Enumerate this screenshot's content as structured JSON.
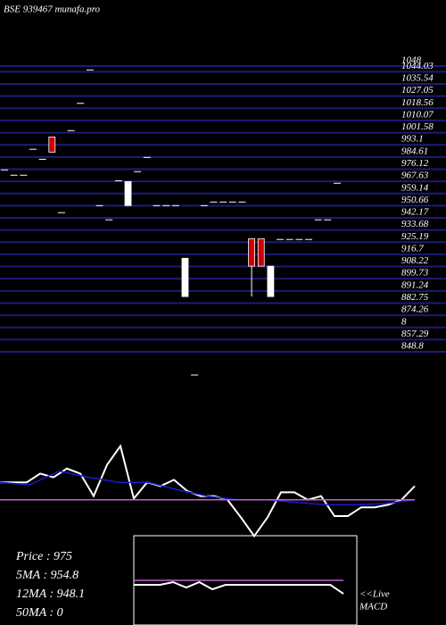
{
  "chart_data": [
    {
      "type": "candlestick",
      "title": "BSE 939467 munafa.pro",
      "categories": [
        null,
        null,
        null,
        null,
        null,
        null,
        null,
        null,
        null,
        null,
        null,
        null,
        null,
        null,
        null,
        null,
        null,
        null,
        null,
        null,
        null,
        null,
        null,
        null,
        null,
        null,
        null,
        null,
        null,
        null,
        null,
        null,
        null,
        null,
        null,
        null
      ],
      "open": [
        975.6,
        971.9,
        971.9,
        990,
        983,
        998.6,
        945.8,
        1003,
        1022,
        1045.3,
        950.7,
        940.8,
        968,
        950.7,
        974.4,
        984.3,
        950.7,
        950.7,
        950.7,
        887.3,
        832.6,
        950.7,
        953.2,
        953.2,
        953.2,
        953.2,
        927.7,
        927.7,
        887.3,
        927.1,
        927.1,
        927.1,
        927.1,
        940.8,
        940.8,
        966.3
      ],
      "high": [
        975.6,
        971.9,
        971.9,
        990,
        983,
        998.6,
        945.8,
        1003,
        1022,
        1045.3,
        950.7,
        940.8,
        968,
        967.5,
        974.4,
        984.3,
        950.7,
        950.7,
        950.7,
        914,
        832.6,
        950.7,
        953.2,
        953.2,
        953.2,
        953.2,
        927.7,
        927.7,
        908.5,
        927.1,
        927.1,
        927.1,
        927.1,
        940.8,
        940.8,
        966.3
      ],
      "low": [
        975.6,
        971.9,
        971.9,
        990,
        983,
        988,
        945.8,
        1003,
        1022,
        1045.3,
        950.7,
        940.8,
        968,
        950.7,
        974.4,
        984.3,
        950.7,
        950.7,
        950.7,
        887.3,
        832.6,
        950.7,
        953.2,
        953.2,
        953.2,
        953.2,
        887.3,
        908.5,
        887.3,
        927.1,
        927.1,
        927.1,
        927.1,
        940.8,
        940.8,
        966.3
      ],
      "close": [
        975.6,
        971.9,
        971.9,
        990,
        983,
        988,
        945.8,
        1003,
        1022,
        1045.3,
        950.7,
        940.8,
        968,
        967.5,
        974.4,
        984.3,
        950.7,
        950.7,
        950.7,
        914,
        832.6,
        950.7,
        953.2,
        953.2,
        953.2,
        953.2,
        908.5,
        908.5,
        908.5,
        927.1,
        927.1,
        927.1,
        927.1,
        940.8,
        940.8,
        966.3
      ],
      "up_color": "#ffffff",
      "down_color": "#cc0000",
      "grid_color": "#1c1c7a",
      "ylim": [
        848.8,
        1048
      ],
      "yticks": [
        1048,
        1044.03,
        1035.54,
        1027.05,
        1018.56,
        1010.07,
        1001.58,
        993.1,
        984.61,
        976.12,
        967.63,
        959.14,
        950.66,
        942.17,
        933.68,
        925.19,
        916.7,
        908.22,
        899.73,
        891.24,
        882.75,
        874.26,
        {
          "value": 865.77,
          "label": "8"
        },
        857.29,
        848.8
      ]
    },
    {
      "type": "line",
      "ylim": [
        0,
        100
      ],
      "series": [
        {
          "color": "#ffffff",
          "values": [
            57,
            57,
            57,
            64,
            61,
            68,
            64,
            46,
            71,
            86,
            44,
            57,
            54,
            59,
            50,
            46,
            46,
            43,
            29,
            14,
            29,
            49,
            49,
            43,
            46,
            30,
            30,
            37,
            37,
            39,
            43,
            54
          ]
        },
        {
          "color": "#1a1ad0",
          "values": [
            57,
            55,
            66,
            61,
            57,
            57,
            51,
            46,
            43,
            43,
            41,
            39,
            39,
            40,
            43
          ]
        },
        {
          "color": "#c060d0",
          "values": [
            43,
            43
          ]
        }
      ],
      "stats": [
        "Price  : 975",
        "5MA : 954.8",
        "12MA : 948.1",
        "50MA : 0"
      ]
    },
    {
      "type": "macd",
      "ylim": [
        0,
        100
      ],
      "series": [
        {
          "color": "#ffffff",
          "values": [
            45,
            45,
            45,
            48,
            42,
            48,
            40,
            45,
            45,
            45,
            45,
            45,
            45,
            45,
            45,
            45,
            35
          ]
        },
        {
          "color": "#c060d0",
          "values": [
            50,
            50
          ]
        }
      ],
      "label": [
        "<<Live",
        "MACD"
      ]
    }
  ]
}
